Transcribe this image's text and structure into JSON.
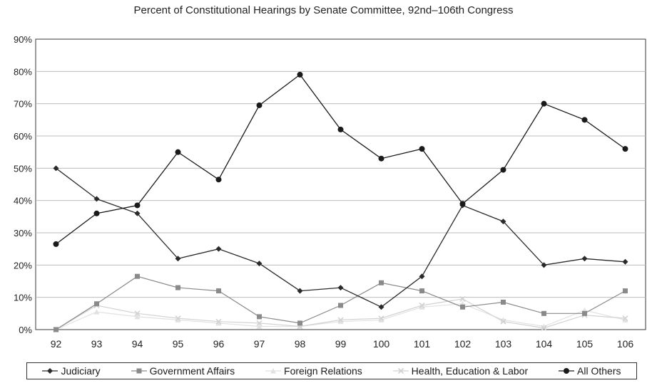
{
  "chart_data": {
    "type": "line",
    "title": "Percent of Constitutional Hearings by Senate Committee, 92nd–106th Congress",
    "xlabel": "",
    "ylabel": "",
    "categories": [
      "92",
      "93",
      "94",
      "95",
      "96",
      "97",
      "98",
      "99",
      "100",
      "101",
      "102",
      "103",
      "104",
      "105",
      "106"
    ],
    "ylim": [
      0,
      90
    ],
    "yticks": [
      "0%",
      "10%",
      "20%",
      "30%",
      "40%",
      "50%",
      "60%",
      "70%",
      "80%",
      "90%"
    ],
    "grid": true,
    "legend_position": "bottom",
    "series": [
      {
        "name": "Judiciary",
        "color": "#2a2a2a",
        "marker": "diamond",
        "values": [
          50,
          40.5,
          36,
          22,
          25,
          20.5,
          12,
          13,
          7,
          16.5,
          38.5,
          33.5,
          20,
          22,
          21
        ]
      },
      {
        "name": "Government Affairs",
        "color": "#8a8a8a",
        "marker": "square",
        "values": [
          0,
          8,
          16.5,
          13,
          12,
          4,
          2,
          7.5,
          14.5,
          12,
          7,
          8.5,
          5,
          5,
          12
        ]
      },
      {
        "name": "Foreign Relations",
        "color": "#e2e2e2",
        "marker": "triangle",
        "values": [
          0,
          5.5,
          4,
          3,
          2,
          1,
          1,
          2.5,
          3,
          7,
          8,
          3,
          1,
          6,
          3
        ]
      },
      {
        "name": "Health, Education & Labor",
        "color": "#d2d2d2",
        "marker": "x",
        "values": [
          0,
          7.5,
          5,
          3.5,
          2.5,
          2,
          1,
          3,
          3.5,
          7.5,
          9.5,
          2.5,
          0.5,
          4.5,
          3.5
        ]
      },
      {
        "name": "All Others",
        "color": "#1a1a1a",
        "marker": "circle",
        "values": [
          26.5,
          36,
          38.5,
          55,
          46.5,
          69.5,
          79,
          62,
          53,
          56,
          39,
          49.5,
          70,
          65,
          56
        ]
      }
    ]
  }
}
